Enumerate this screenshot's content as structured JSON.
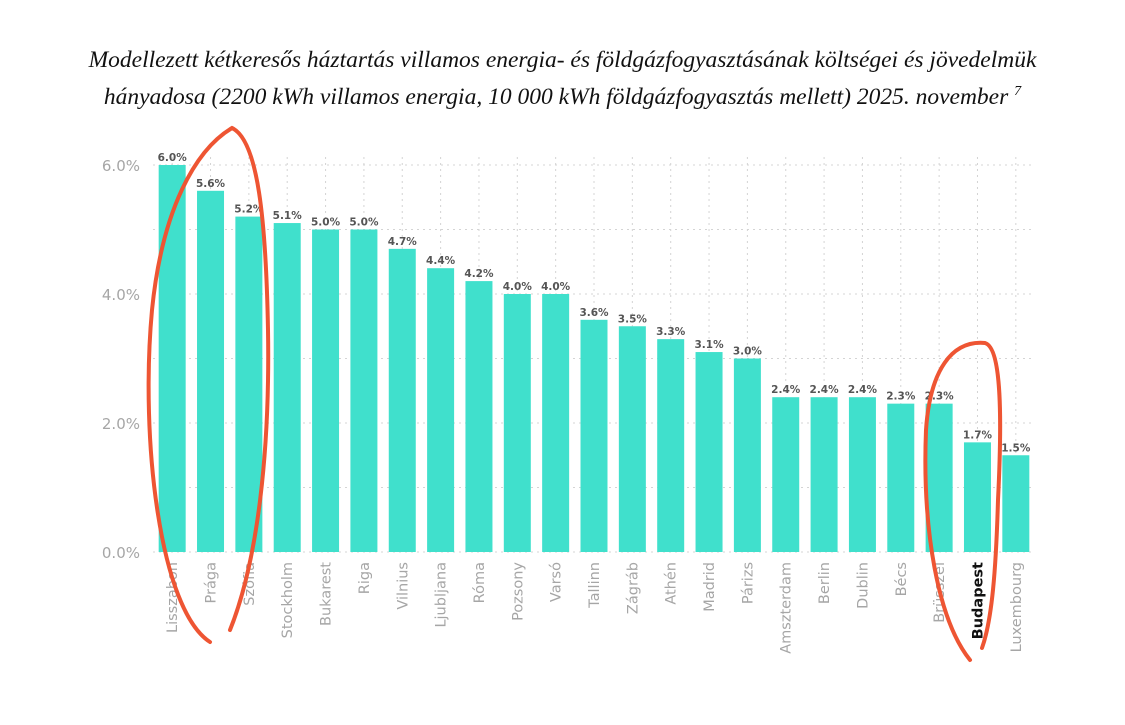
{
  "chart_data": {
    "type": "bar",
    "title_line1": "Modellezett kétkeresős háztartás villamos energia- és földgázfogyasztásának költségei és jövedelmük",
    "title_line2": "hányadosa (2200 kWh villamos energia, 10 000 kWh földgázfogyasztás mellett) 2025. november",
    "title_footnote": "7",
    "categories": [
      "Lisszabon",
      "Prága",
      "Szófia",
      "Stockholm",
      "Bukarest",
      "Riga",
      "Vilnius",
      "Ljubljana",
      "Róma",
      "Pozsony",
      "Varsó",
      "Tallinn",
      "Zágráb",
      "Athén",
      "Madrid",
      "Párizs",
      "Amszterdam",
      "Berlin",
      "Dublin",
      "Bécs",
      "Brüsszel",
      "Budapest",
      "Luxembourg"
    ],
    "values": [
      6.0,
      5.6,
      5.2,
      5.1,
      5.0,
      5.0,
      4.7,
      4.4,
      4.2,
      4.0,
      4.0,
      3.6,
      3.5,
      3.3,
      3.1,
      3.0,
      2.4,
      2.4,
      2.4,
      2.3,
      2.3,
      1.7,
      1.5
    ],
    "data_labels": [
      "6.0%",
      "5.6%",
      "5.2%",
      "5.1%",
      "5.0%",
      "5.0%",
      "4.7%",
      "4.4%",
      "4.2%",
      "4.0%",
      "4.0%",
      "3.6%",
      "3.5%",
      "3.3%",
      "3.1%",
      "3.0%",
      "2.4%",
      "2.4%",
      "2.4%",
      "2.3%",
      "2.3%",
      "1.7%",
      "1.5%"
    ],
    "highlighted_category": "Budapest",
    "ylim": [
      0,
      6.0
    ],
    "y_ticks": [
      0,
      2,
      4,
      6
    ],
    "y_tick_labels": [
      "0.0%",
      "2.0%",
      "4.0%",
      "6.0%"
    ],
    "grid": true,
    "colors": {
      "bar": "#40e0cc",
      "grid": "#d4d4d4",
      "tick_text": "#a6a6a6",
      "highlight_text": "#111111",
      "annotation": "#ee5533"
    },
    "annotations": [
      "red ellipse around Lisszabon, Prága, Szófia",
      "red ellipse around Brüsszel, Budapest"
    ]
  }
}
